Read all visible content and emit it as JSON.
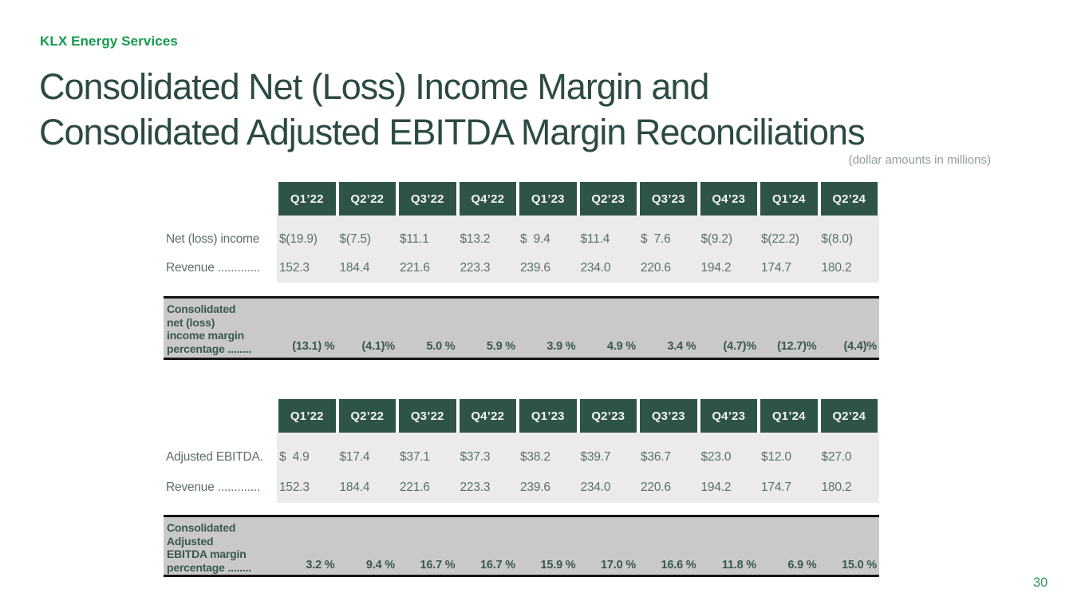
{
  "brand": "KLX Energy Services",
  "title_line1": "Consolidated Net (Loss) Income Margin and",
  "title_line2": "Consolidated Adjusted EBITDA Margin Reconciliations",
  "subtitle": "(dollar amounts in millions)",
  "page_number": "30",
  "colors": {
    "brand_green": "#149a4d",
    "title_green": "#2c4a44",
    "header_box_green": "#2e5347",
    "data_bg_gray": "#ebecea",
    "margin_bg_gray": "#c9cac8",
    "data_text": "#5d6f69",
    "margin_text": "#3b584d",
    "page_number_green": "#2f9e57"
  },
  "quarters": [
    "Q1’22",
    "Q2’22",
    "Q3’22",
    "Q4’22",
    "Q1’23",
    "Q2’23",
    "Q3’23",
    "Q4’23",
    "Q1’24",
    "Q2’24"
  ],
  "table1": {
    "rows": [
      {
        "label": "Net (loss) income",
        "values": [
          "$(19.9)",
          "$(7.5)",
          "$11.1",
          "$13.2",
          "$  9.4",
          "$11.4",
          "$  7.6",
          "$(9.2)",
          "$(22.2)",
          "$(8.0)"
        ]
      },
      {
        "label": "Revenue .............",
        "values": [
          "152.3",
          "184.4",
          "221.6",
          "223.3",
          "239.6",
          "234.0",
          "220.6",
          "194.2",
          "174.7",
          "180.2"
        ]
      }
    ],
    "margin_label_lines": [
      "Consolidated",
      "net (loss)",
      "income margin",
      "percentage ........"
    ],
    "margin_values": [
      "(13.1) %",
      "(4.1)%",
      "5.0 %",
      "5.9 %",
      "3.9 %",
      "4.9 %",
      "3.4 %",
      "(4.7)%",
      "(12.7)%",
      "(4.4)%"
    ]
  },
  "table2": {
    "rows": [
      {
        "label": "Adjusted EBITDA.",
        "values": [
          "$  4.9",
          "$17.4",
          "$37.1",
          "$37.3",
          "$38.2",
          "$39.7",
          "$36.7",
          "$23.0",
          "$12.0",
          "$27.0"
        ]
      },
      {
        "label": "Revenue .............",
        "values": [
          "152.3",
          "184.4",
          "221.6",
          "223.3",
          "239.6",
          "234.0",
          "220.6",
          "194.2",
          "174.7",
          "180.2"
        ]
      }
    ],
    "margin_label_lines": [
      "Consolidated",
      "Adjusted",
      "EBITDA margin",
      "percentage ........"
    ],
    "margin_values": [
      "3.2 %",
      "9.4 %",
      "16.7 %",
      "16.7 %",
      "15.9 %",
      "17.0 %",
      "16.6 %",
      "11.8 %",
      "6.9 %",
      "15.0 %"
    ]
  }
}
